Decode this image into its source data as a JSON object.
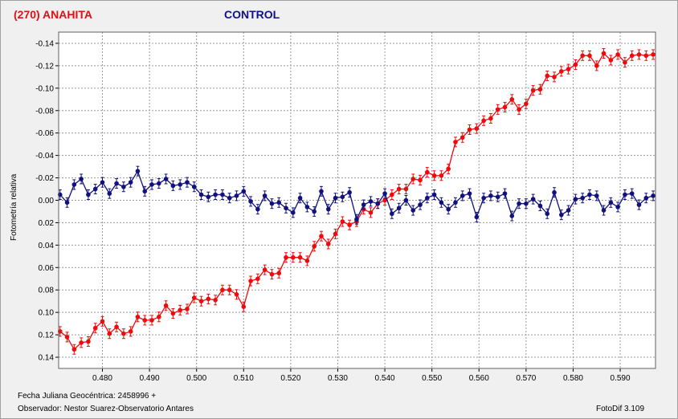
{
  "header": {
    "target_title": "(270) ANAHITA",
    "control_title": "CONTROL"
  },
  "footer": {
    "date_text": "Fecha Juliana Geocéntrica: 2458996 +",
    "observer_text": "Observador: Nestor Suarez-Observatorio Antares",
    "version_text": "FotoDif 3.109"
  },
  "colors": {
    "target": "#ee0a0a",
    "control": "#10107e",
    "grid": "#9a9a9a",
    "plot_bg": "#ffffff"
  },
  "chart_data": {
    "type": "scatter",
    "ylabel": "Fotometría relativa",
    "xlabel": "",
    "xlim": [
      0.4707,
      0.5975
    ],
    "ylim": [
      -0.15,
      0.15
    ],
    "y_inverted": true,
    "grid": true,
    "error_bars": true,
    "x_ticks": [
      "0.480",
      "0.490",
      "0.500",
      "0.510",
      "0.520",
      "0.530",
      "0.540",
      "0.550",
      "0.560",
      "0.570",
      "0.580",
      "0.590"
    ],
    "y_ticks": [
      "-0.14",
      "-0.12",
      "-0.10",
      "-0.08",
      "-0.06",
      "-0.04",
      "-0.02",
      "0.00",
      "0.02",
      "0.04",
      "0.06",
      "0.08",
      "0.10",
      "0.12",
      "0.14"
    ],
    "series": [
      {
        "name": "(270) ANAHITA",
        "x": [
          0.471,
          0.4725,
          0.474,
          0.4755,
          0.477,
          0.4785,
          0.48,
          0.4815,
          0.483,
          0.4845,
          0.486,
          0.4875,
          0.489,
          0.4905,
          0.492,
          0.4935,
          0.495,
          0.4965,
          0.498,
          0.4995,
          0.501,
          0.5025,
          0.504,
          0.5055,
          0.507,
          0.5085,
          0.51,
          0.5115,
          0.513,
          0.5145,
          0.516,
          0.5175,
          0.519,
          0.5205,
          0.522,
          0.5235,
          0.525,
          0.5265,
          0.528,
          0.5295,
          0.531,
          0.5325,
          0.534,
          0.5355,
          0.537,
          0.5385,
          0.54,
          0.5415,
          0.543,
          0.5445,
          0.546,
          0.5475,
          0.549,
          0.5505,
          0.552,
          0.5535,
          0.555,
          0.5565,
          0.558,
          0.5595,
          0.561,
          0.5625,
          0.564,
          0.5655,
          0.567,
          0.5685,
          0.57,
          0.5715,
          0.573,
          0.5745,
          0.576,
          0.5775,
          0.579,
          0.5805,
          0.582,
          0.5835,
          0.585,
          0.5865,
          0.588,
          0.5895,
          0.591,
          0.5925,
          0.594,
          0.5955,
          0.597
        ],
        "y": [
          0.117,
          0.122,
          0.133,
          0.127,
          0.126,
          0.114,
          0.108,
          0.119,
          0.113,
          0.119,
          0.117,
          0.104,
          0.107,
          0.107,
          0.104,
          0.094,
          0.101,
          0.098,
          0.097,
          0.087,
          0.09,
          0.088,
          0.089,
          0.08,
          0.08,
          0.084,
          0.095,
          0.072,
          0.07,
          0.062,
          0.066,
          0.065,
          0.051,
          0.051,
          0.051,
          0.054,
          0.041,
          0.032,
          0.039,
          0.03,
          0.019,
          0.022,
          0.019,
          0.008,
          0.011,
          0.003,
          0.0,
          -0.005,
          -0.01,
          -0.01,
          -0.019,
          -0.018,
          -0.025,
          -0.022,
          -0.022,
          -0.028,
          -0.052,
          -0.056,
          -0.063,
          -0.064,
          -0.071,
          -0.073,
          -0.081,
          -0.083,
          -0.09,
          -0.081,
          -0.086,
          -0.098,
          -0.099,
          -0.111,
          -0.11,
          -0.115,
          -0.117,
          -0.121,
          -0.129,
          -0.129,
          -0.12,
          -0.131,
          -0.125,
          -0.13,
          -0.123,
          -0.129,
          -0.13,
          -0.129,
          -0.13
        ]
      },
      {
        "name": "CONTROL",
        "x": [
          0.471,
          0.4725,
          0.474,
          0.4755,
          0.477,
          0.4785,
          0.48,
          0.4815,
          0.483,
          0.4845,
          0.486,
          0.4875,
          0.489,
          0.4905,
          0.492,
          0.4935,
          0.495,
          0.4965,
          0.498,
          0.4995,
          0.501,
          0.5025,
          0.504,
          0.5055,
          0.507,
          0.5085,
          0.51,
          0.5115,
          0.513,
          0.5145,
          0.516,
          0.5175,
          0.519,
          0.5205,
          0.522,
          0.5235,
          0.525,
          0.5265,
          0.528,
          0.5295,
          0.531,
          0.5325,
          0.534,
          0.5355,
          0.537,
          0.5385,
          0.54,
          0.5415,
          0.543,
          0.5445,
          0.546,
          0.5475,
          0.549,
          0.5505,
          0.552,
          0.5535,
          0.555,
          0.5565,
          0.558,
          0.5595,
          0.561,
          0.5625,
          0.564,
          0.5655,
          0.567,
          0.5685,
          0.57,
          0.5715,
          0.573,
          0.5745,
          0.576,
          0.5775,
          0.579,
          0.5805,
          0.582,
          0.5835,
          0.585,
          0.5865,
          0.588,
          0.5895,
          0.591,
          0.5925,
          0.594,
          0.5955,
          0.597
        ],
        "y": [
          -0.005,
          0.002,
          -0.014,
          -0.019,
          -0.005,
          -0.01,
          -0.016,
          -0.006,
          -0.015,
          -0.012,
          -0.016,
          -0.026,
          -0.008,
          -0.014,
          -0.015,
          -0.019,
          -0.013,
          -0.014,
          -0.016,
          -0.012,
          -0.005,
          -0.003,
          -0.005,
          -0.005,
          -0.002,
          -0.004,
          -0.008,
          0.001,
          0.008,
          -0.004,
          0.003,
          0.002,
          0.007,
          0.011,
          -0.002,
          0.006,
          0.01,
          -0.008,
          0.008,
          -0.002,
          -0.003,
          -0.007,
          0.017,
          0.004,
          0.001,
          0.003,
          -0.006,
          0.012,
          0.007,
          0.0,
          0.009,
          0.004,
          -0.002,
          -0.005,
          0.002,
          0.008,
          0.002,
          -0.004,
          -0.006,
          0.015,
          -0.002,
          -0.004,
          -0.003,
          -0.006,
          0.014,
          0.003,
          0.003,
          -0.001,
          0.005,
          0.012,
          -0.007,
          0.013,
          0.009,
          -0.001,
          -0.002,
          -0.005,
          -0.004,
          0.009,
          0.002,
          0.006,
          -0.005,
          -0.006,
          0.004,
          -0.002,
          -0.004
        ]
      }
    ]
  }
}
